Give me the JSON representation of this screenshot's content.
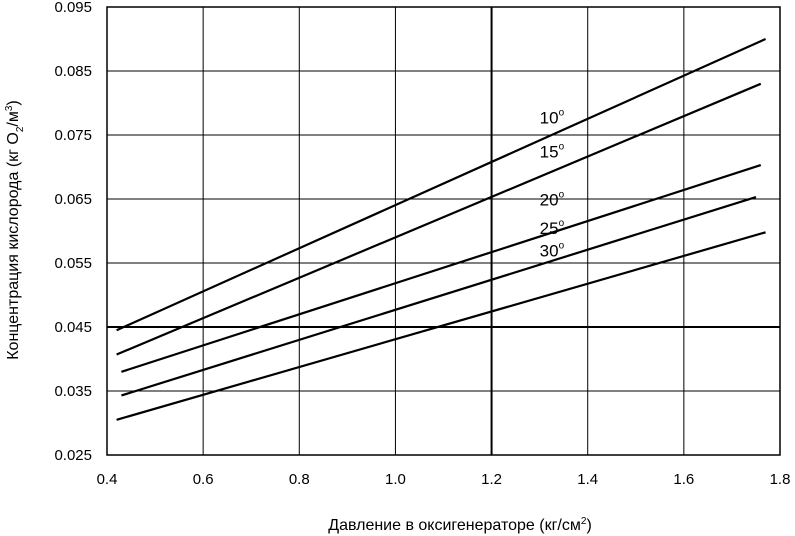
{
  "chart_data": {
    "type": "line",
    "title": "",
    "xlabel": "Давление в оксигенераторе (кг/см",
    "xlabel_sup": "2",
    "xlabel_end": ")",
    "ylabel_parts": [
      "Концентрация кислорода (кг O",
      "2",
      "/м",
      "3",
      ")"
    ],
    "xlim": [
      0.4,
      1.8
    ],
    "ylim": [
      0.025,
      0.095
    ],
    "xticks": [
      "0.4",
      "0.6",
      "0.8",
      "1.0",
      "1.2",
      "1.4",
      "1.6",
      "1.8"
    ],
    "yticks": [
      "0.025",
      "0.035",
      "0.045",
      "0.055",
      "0.065",
      "0.075",
      "0.085",
      "0.095"
    ],
    "grid": true,
    "series": [
      {
        "label": "10",
        "x": [
          0.42,
          1.77
        ],
        "y": [
          0.0445,
          0.09
        ]
      },
      {
        "label": "15",
        "x": [
          0.42,
          1.76
        ],
        "y": [
          0.0407,
          0.083
        ]
      },
      {
        "label": "20",
        "x": [
          0.43,
          1.76
        ],
        "y": [
          0.038,
          0.0703
        ]
      },
      {
        "label": "25",
        "x": [
          0.43,
          1.75
        ],
        "y": [
          0.0343,
          0.0653
        ]
      },
      {
        "label": "30",
        "x": [
          0.42,
          1.77
        ],
        "y": [
          0.0305,
          0.0598
        ]
      }
    ],
    "label_positions": [
      {
        "x": 1.3,
        "y": 0.0768
      },
      {
        "x": 1.3,
        "y": 0.0715
      },
      {
        "x": 1.3,
        "y": 0.064
      },
      {
        "x": 1.3,
        "y": 0.0595
      },
      {
        "x": 1.3,
        "y": 0.056
      }
    ],
    "degree_symbol": "o"
  }
}
